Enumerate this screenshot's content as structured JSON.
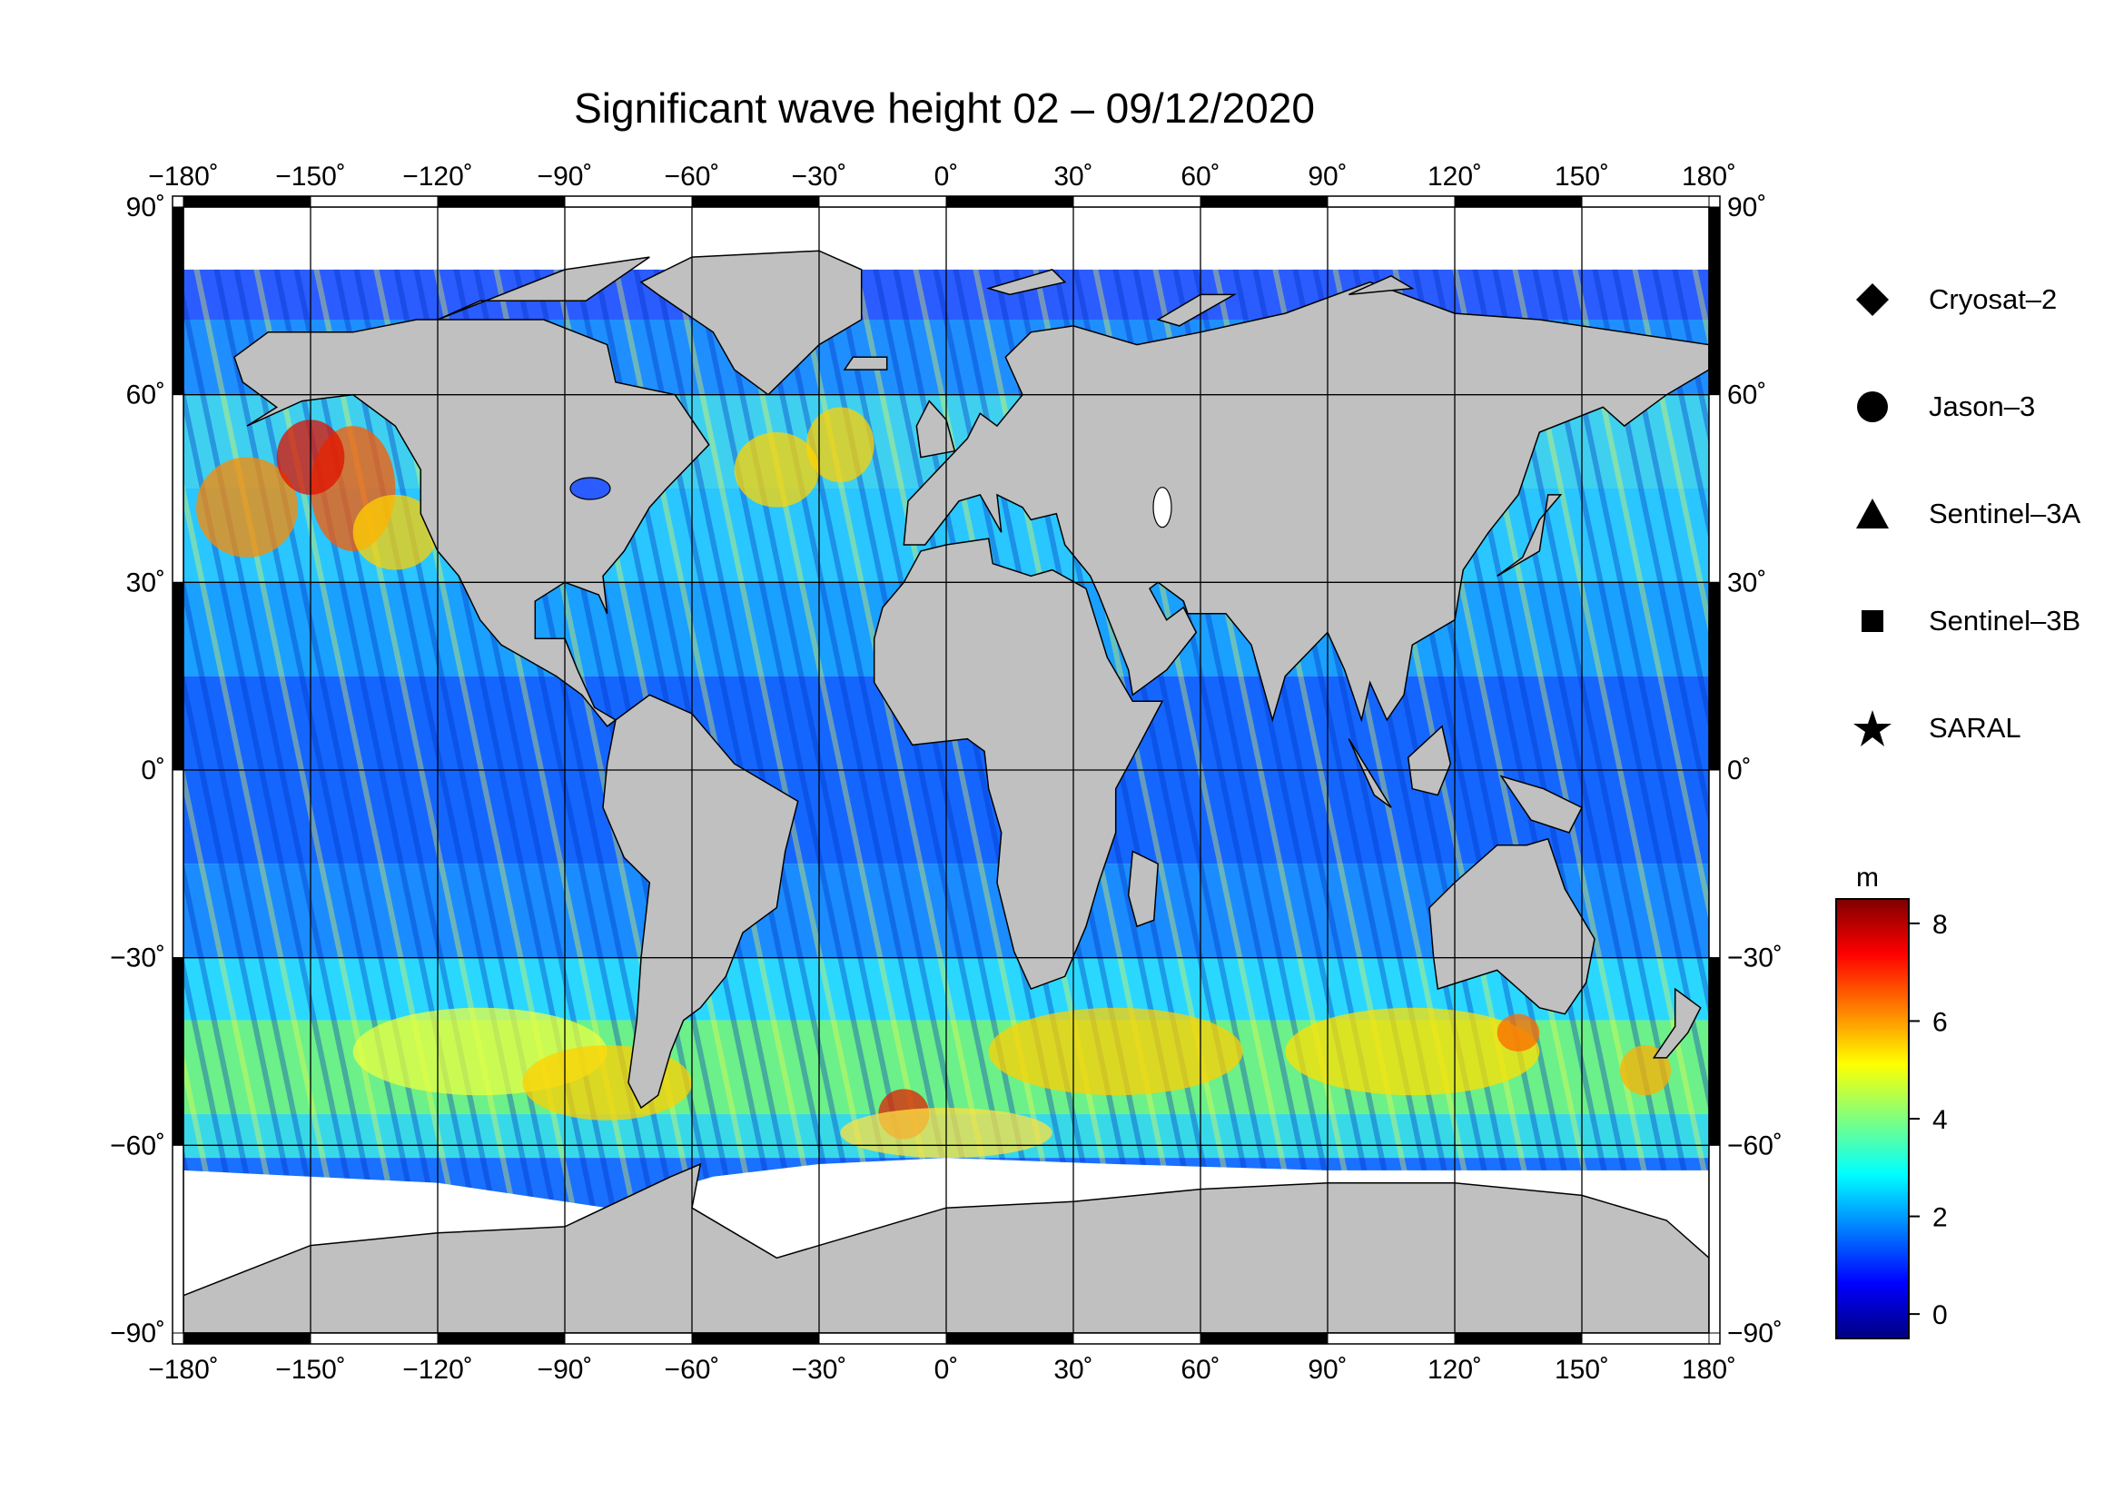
{
  "title": "Significant wave height 02 – 09/12/2020",
  "map": {
    "projection": "equirectangular",
    "lon_range": [
      -180,
      180
    ],
    "lat_range": [
      -90,
      90
    ],
    "lon_ticks": [
      -180,
      -150,
      -120,
      -90,
      -60,
      -30,
      0,
      30,
      60,
      90,
      120,
      150,
      180
    ],
    "lat_ticks": [
      90,
      60,
      30,
      0,
      -30,
      -60,
      -90
    ],
    "lon_tick_labels": [
      "−180˚",
      "−150˚",
      "−120˚",
      "−90˚",
      "−60˚",
      "−30˚",
      "0˚",
      "30˚",
      "60˚",
      "90˚",
      "120˚",
      "150˚",
      "180˚"
    ],
    "lat_tick_labels": [
      "90˚",
      "60˚",
      "30˚",
      "0˚",
      "−30˚",
      "−60˚",
      "−90˚"
    ],
    "grid": true,
    "land_color": "#c0c0c0",
    "ice_color": "#ffffff",
    "colormap": "jet"
  },
  "legend": {
    "items": [
      {
        "label": "Cryosat–2",
        "symbol": "diamond-icon"
      },
      {
        "label": "Jason–3",
        "symbol": "circle-icon"
      },
      {
        "label": "Sentinel–3A",
        "symbol": "triangle-icon"
      },
      {
        "label": "Sentinel–3B",
        "symbol": "square-icon"
      },
      {
        "label": "SARAL",
        "symbol": "star-icon"
      }
    ]
  },
  "colorbar": {
    "unit": "m",
    "range": [
      -0.5,
      8.5
    ],
    "ticks": [
      0,
      2,
      4,
      6,
      8
    ],
    "tick_labels": [
      "0",
      "2",
      "4",
      "6",
      "8"
    ],
    "colors": [
      "#00007f",
      "#0000ff",
      "#007fff",
      "#00ffff",
      "#7fff7f",
      "#ffff00",
      "#ff7f00",
      "#ff0000",
      "#7f0000"
    ]
  }
}
